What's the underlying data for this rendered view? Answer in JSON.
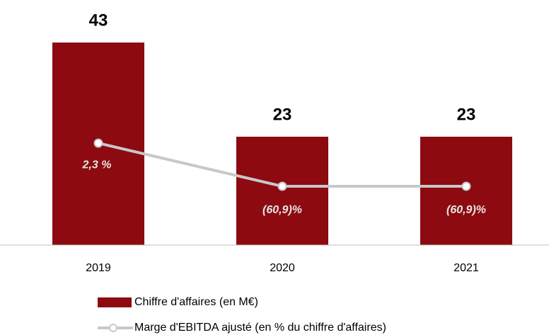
{
  "chart_data": {
    "type": "bar-line",
    "categories": [
      "2019",
      "2020",
      "2021"
    ],
    "ylim": [
      0,
      50
    ],
    "y2lim": [
      -147,
      198
    ],
    "series": [
      {
        "name": "Chiffre d'affaires (en M€)",
        "type": "bar",
        "color": "#8c0a10",
        "values": [
          43,
          23,
          23
        ]
      },
      {
        "name": "Marge d'EBITDA ajusté (en % du chiffre d'affaires)",
        "type": "line",
        "axis": "y2",
        "color": "#c8c8c8",
        "values": [
          2.3,
          -60.9,
          -60.9
        ],
        "value_labels": [
          "2,3 %",
          "(60,9)%",
          "(60,9)%"
        ]
      }
    ]
  }
}
